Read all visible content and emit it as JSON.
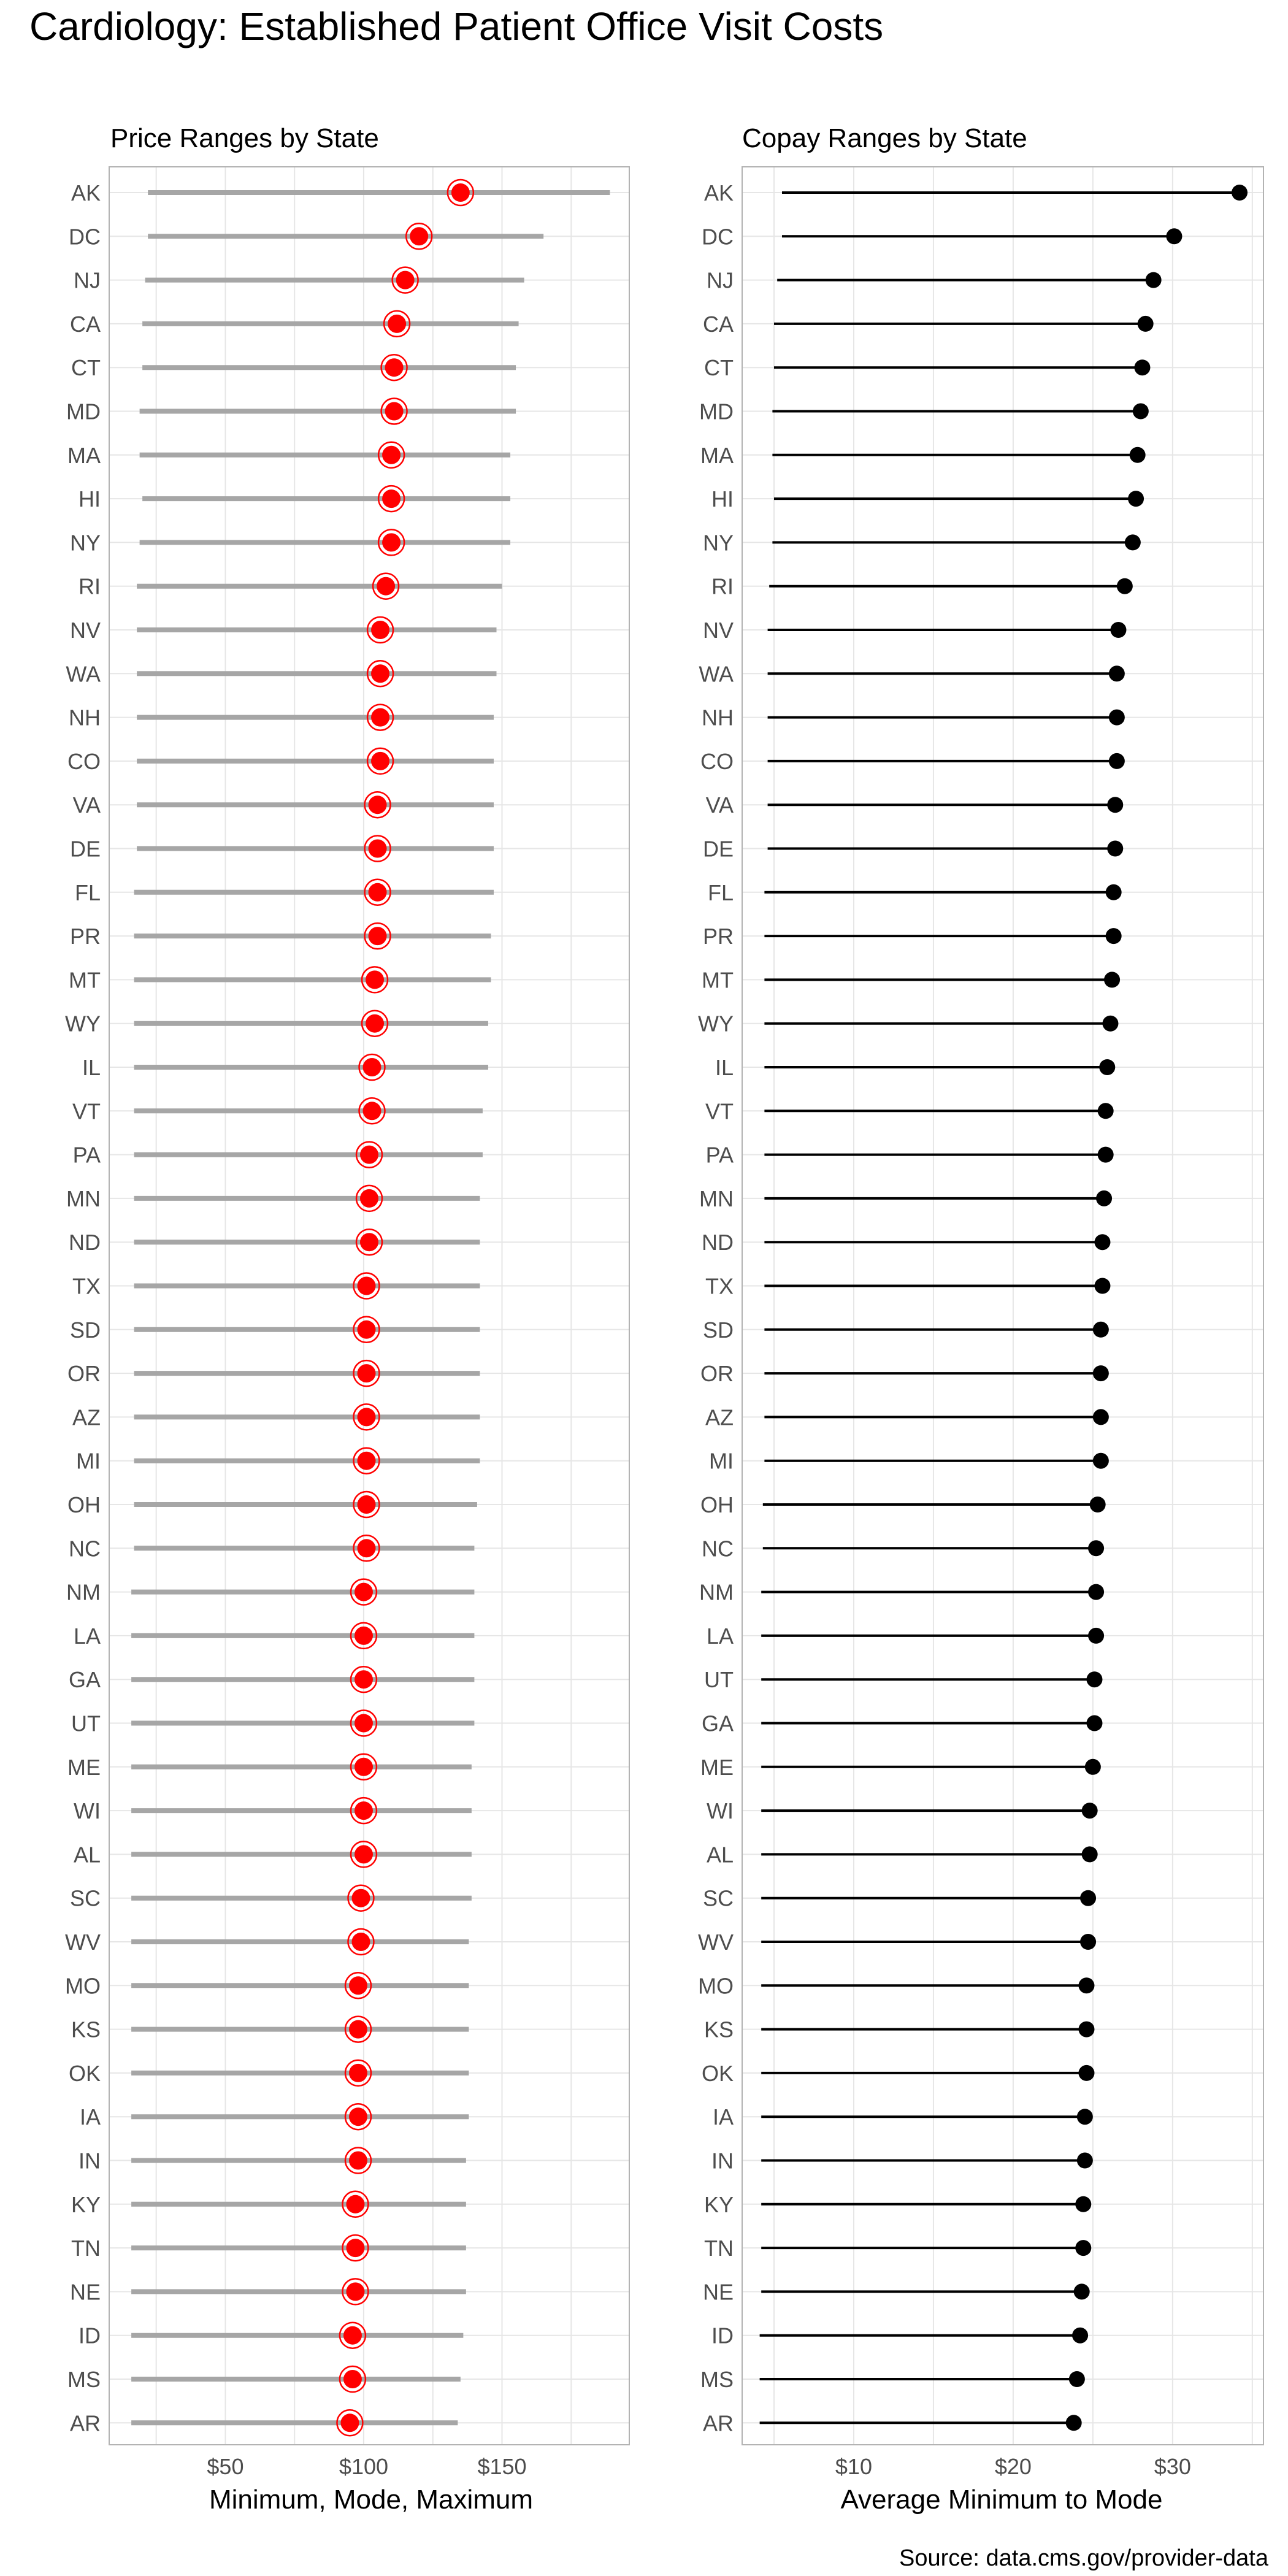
{
  "title": "Cardiology: Established Patient Office Visit Costs",
  "source": "Source: data.cms.gov/provider-data",
  "colors": {
    "range_line": "#a6a6a6",
    "mode_point": "#ff0000",
    "mode_ring": "#ff0000",
    "copay_line": "#000000",
    "copay_point": "#000000",
    "grid": "#e6e6e6",
    "panel_border": "#b3b3b3"
  },
  "chart_data": [
    {
      "type": "range-dot",
      "title": "Price Ranges by State",
      "xlabel": "Minimum, Mode, Maximum",
      "ylabel": "",
      "xlim": [
        8,
        196
      ],
      "xticks": [
        50,
        100,
        150
      ],
      "xtick_labels": [
        "$50",
        "$100",
        "$150"
      ],
      "grid": true,
      "categories": [
        "AK",
        "DC",
        "NJ",
        "CA",
        "CT",
        "MD",
        "MA",
        "HI",
        "NY",
        "RI",
        "NV",
        "WA",
        "NH",
        "CO",
        "VA",
        "DE",
        "FL",
        "PR",
        "MT",
        "WY",
        "IL",
        "VT",
        "PA",
        "MN",
        "ND",
        "TX",
        "SD",
        "OR",
        "AZ",
        "MI",
        "OH",
        "NC",
        "NM",
        "LA",
        "GA",
        "UT",
        "ME",
        "WI",
        "AL",
        "SC",
        "WV",
        "MO",
        "KS",
        "OK",
        "IA",
        "IN",
        "KY",
        "TN",
        "NE",
        "ID",
        "MS",
        "AR"
      ],
      "series": [
        {
          "values": [
            22,
            22,
            21,
            20,
            20,
            19,
            19,
            20,
            19,
            18,
            18,
            18,
            18,
            18,
            18,
            18,
            17,
            17,
            17,
            17,
            17,
            17,
            17,
            17,
            17,
            17,
            17,
            17,
            17,
            17,
            17,
            17,
            16,
            16,
            16,
            16,
            16,
            16,
            16,
            16,
            16,
            16,
            16,
            16,
            16,
            16,
            16,
            16,
            16,
            16,
            16,
            16
          ]
        },
        {
          "values": [
            135,
            120,
            115,
            112,
            111,
            111,
            110,
            110,
            110,
            108,
            106,
            106,
            106,
            106,
            105,
            105,
            105,
            105,
            104,
            104,
            103,
            103,
            102,
            102,
            102,
            101,
            101,
            101,
            101,
            101,
            101,
            101,
            100,
            100,
            100,
            100,
            100,
            100,
            100,
            99,
            99,
            98,
            98,
            98,
            98,
            98,
            97,
            97,
            97,
            96,
            96,
            95
          ]
        },
        {
          "values": [
            189,
            165,
            158,
            156,
            155,
            155,
            153,
            153,
            153,
            150,
            148,
            148,
            147,
            147,
            147,
            147,
            147,
            146,
            146,
            145,
            145,
            143,
            143,
            142,
            142,
            142,
            142,
            142,
            142,
            142,
            141,
            140,
            140,
            140,
            140,
            140,
            139,
            139,
            139,
            139,
            138,
            138,
            138,
            138,
            138,
            137,
            137,
            137,
            137,
            136,
            135,
            134
          ]
        }
      ]
    },
    {
      "type": "lollipop",
      "title": "Copay Ranges by State",
      "xlabel": "Average Minimum to Mode",
      "ylabel": "",
      "xlim": [
        3,
        35.7
      ],
      "xticks": [
        10,
        20,
        30
      ],
      "xtick_labels": [
        "$10",
        "$20",
        "$30"
      ],
      "grid": true,
      "categories": [
        "AK",
        "DC",
        "NJ",
        "CA",
        "CT",
        "MD",
        "MA",
        "HI",
        "NY",
        "RI",
        "NV",
        "WA",
        "NH",
        "CO",
        "VA",
        "DE",
        "FL",
        "PR",
        "MT",
        "WY",
        "IL",
        "VT",
        "PA",
        "MN",
        "ND",
        "TX",
        "SD",
        "OR",
        "AZ",
        "MI",
        "OH",
        "NC",
        "NM",
        "LA",
        "UT",
        "GA",
        "ME",
        "WI",
        "AL",
        "SC",
        "WV",
        "MO",
        "KS",
        "OK",
        "IA",
        "IN",
        "KY",
        "TN",
        "NE",
        "ID",
        "MS",
        "AR"
      ],
      "series": [
        {
          "values": [
            5.5,
            5.5,
            5.2,
            5.0,
            5.0,
            4.9,
            4.9,
            5.0,
            4.9,
            4.7,
            4.6,
            4.6,
            4.6,
            4.6,
            4.6,
            4.6,
            4.4,
            4.4,
            4.4,
            4.4,
            4.4,
            4.4,
            4.4,
            4.4,
            4.4,
            4.4,
            4.4,
            4.4,
            4.4,
            4.4,
            4.3,
            4.3,
            4.2,
            4.2,
            4.2,
            4.2,
            4.2,
            4.2,
            4.2,
            4.2,
            4.2,
            4.2,
            4.2,
            4.2,
            4.2,
            4.2,
            4.2,
            4.2,
            4.2,
            4.1,
            4.1,
            4.1
          ]
        },
        {
          "values": [
            34.2,
            30.1,
            28.8,
            28.3,
            28.1,
            28.0,
            27.8,
            27.7,
            27.5,
            27.0,
            26.6,
            26.5,
            26.5,
            26.5,
            26.4,
            26.4,
            26.3,
            26.3,
            26.2,
            26.1,
            25.9,
            25.8,
            25.8,
            25.7,
            25.6,
            25.6,
            25.5,
            25.5,
            25.5,
            25.5,
            25.3,
            25.2,
            25.2,
            25.2,
            25.1,
            25.1,
            25.0,
            24.8,
            24.8,
            24.7,
            24.7,
            24.6,
            24.6,
            24.6,
            24.5,
            24.5,
            24.4,
            24.4,
            24.3,
            24.2,
            24.0,
            23.8
          ]
        }
      ]
    }
  ]
}
